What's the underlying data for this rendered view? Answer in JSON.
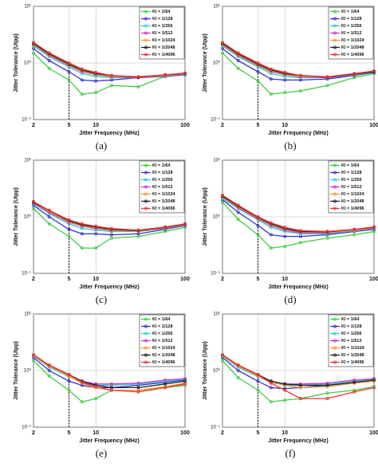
{
  "chart_data": [
    {
      "type": "line",
      "caption": "(a)",
      "xlabel": "Jitter Frequency (MHz)",
      "ylabel": "Jitter Tolerance (UIpp)",
      "log_x": true,
      "log_y": true,
      "grid": true,
      "legend": "upper right",
      "vline_x": 5,
      "x": [
        2,
        3,
        5,
        7,
        10,
        15,
        30,
        60,
        100
      ],
      "xlim": [
        2,
        100
      ],
      "xticks": [
        2,
        5,
        10,
        100
      ],
      "ylim": [
        0.1,
        10
      ],
      "yticks": [
        {
          "value": 0.1,
          "label": "10⁻¹"
        },
        {
          "value": 1,
          "label": "10⁰"
        },
        {
          "value": 10,
          "label": "10¹"
        }
      ],
      "series": [
        {
          "name": "KI = 1/64",
          "color": "#44cc44",
          "values": [
            1.5,
            0.8,
            0.5,
            0.28,
            0.3,
            0.4,
            0.38,
            0.58,
            0.62
          ]
        },
        {
          "name": "KI = 1/128",
          "color": "#3333cc",
          "values": [
            1.8,
            1.1,
            0.7,
            0.5,
            0.48,
            0.5,
            0.55,
            0.58,
            0.62
          ]
        },
        {
          "name": "KI = 1/256",
          "color": "#33cccc",
          "values": [
            2.0,
            1.3,
            0.85,
            0.65,
            0.58,
            0.55,
            0.55,
            0.6,
            0.63
          ]
        },
        {
          "name": "KI = 1/512",
          "color": "#cc33cc",
          "values": [
            2.1,
            1.35,
            0.9,
            0.7,
            0.62,
            0.57,
            0.55,
            0.6,
            0.64
          ]
        },
        {
          "name": "KI = 1/1024",
          "color": "#ee9933",
          "values": [
            2.1,
            1.4,
            0.92,
            0.72,
            0.63,
            0.58,
            0.56,
            0.6,
            0.65
          ]
        },
        {
          "name": "KI = 1/2048",
          "color": "#222222",
          "values": [
            2.2,
            1.45,
            0.95,
            0.75,
            0.65,
            0.6,
            0.56,
            0.62,
            0.65
          ]
        },
        {
          "name": "KI = 1/4096",
          "color": "#ee3333",
          "values": [
            2.3,
            1.5,
            1.0,
            0.78,
            0.68,
            0.6,
            0.57,
            0.62,
            0.66
          ]
        }
      ]
    },
    {
      "type": "line",
      "caption": "(b)",
      "xlabel": "Jitter Frequency (MHz)",
      "ylabel": "Jitter Tolerance (UIpp)",
      "log_x": true,
      "log_y": true,
      "grid": true,
      "legend": "upper right",
      "vline_x": 5,
      "x": [
        2,
        3,
        5,
        7,
        10,
        15,
        30,
        60,
        100
      ],
      "xlim": [
        2,
        100
      ],
      "xticks": [
        2,
        5,
        10,
        100
      ],
      "ylim": [
        0.1,
        10
      ],
      "yticks": [
        {
          "value": 0.1,
          "label": "10⁻¹"
        },
        {
          "value": 1,
          "label": "10⁰"
        },
        {
          "value": 10,
          "label": "10¹"
        }
      ],
      "series": [
        {
          "name": "KI = 1/64",
          "color": "#44cc44",
          "values": [
            1.5,
            0.8,
            0.48,
            0.28,
            0.3,
            0.32,
            0.4,
            0.55,
            0.65
          ]
        },
        {
          "name": "KI = 1/128",
          "color": "#3333cc",
          "values": [
            1.8,
            1.1,
            0.7,
            0.52,
            0.5,
            0.5,
            0.52,
            0.6,
            0.68
          ]
        },
        {
          "name": "KI = 1/256",
          "color": "#33cccc",
          "values": [
            2.0,
            1.3,
            0.85,
            0.65,
            0.58,
            0.55,
            0.55,
            0.62,
            0.7
          ]
        },
        {
          "name": "KI = 1/512",
          "color": "#cc33cc",
          "values": [
            2.1,
            1.35,
            0.9,
            0.7,
            0.62,
            0.57,
            0.55,
            0.63,
            0.7
          ]
        },
        {
          "name": "KI = 1/1024",
          "color": "#ee9933",
          "values": [
            2.1,
            1.4,
            0.92,
            0.72,
            0.63,
            0.58,
            0.56,
            0.63,
            0.7
          ]
        },
        {
          "name": "KI = 1/2048",
          "color": "#222222",
          "values": [
            2.2,
            1.45,
            0.95,
            0.75,
            0.65,
            0.6,
            0.56,
            0.64,
            0.7
          ]
        },
        {
          "name": "KI = 1/4096",
          "color": "#ee3333",
          "values": [
            2.3,
            1.5,
            1.0,
            0.78,
            0.68,
            0.6,
            0.57,
            0.65,
            0.72
          ]
        }
      ]
    },
    {
      "type": "line",
      "caption": "(c)",
      "xlabel": "Jitter Frequency (MHz)",
      "ylabel": "Jitter Tolerance (UIpp)",
      "log_x": true,
      "log_y": true,
      "grid": true,
      "legend": "upper right",
      "vline_x": 5,
      "x": [
        2,
        3,
        5,
        7,
        10,
        15,
        30,
        60,
        100
      ],
      "xlim": [
        2,
        100
      ],
      "xticks": [
        2,
        5,
        10,
        100
      ],
      "ylim": [
        0.1,
        10
      ],
      "yticks": [
        {
          "value": 0.1,
          "label": "10⁻¹"
        },
        {
          "value": 1,
          "label": "10⁰"
        },
        {
          "value": 10,
          "label": "10¹"
        }
      ],
      "series": [
        {
          "name": "KI = 1/64",
          "color": "#44cc44",
          "values": [
            1.4,
            0.75,
            0.45,
            0.28,
            0.28,
            0.42,
            0.45,
            0.55,
            0.65
          ]
        },
        {
          "name": "KI = 1/128",
          "color": "#3333cc",
          "values": [
            1.6,
            1.0,
            0.6,
            0.5,
            0.5,
            0.48,
            0.5,
            0.6,
            0.7
          ]
        },
        {
          "name": "KI = 1/256",
          "color": "#33cccc",
          "values": [
            1.7,
            1.15,
            0.75,
            0.62,
            0.58,
            0.55,
            0.55,
            0.62,
            0.72
          ]
        },
        {
          "name": "KI = 1/512",
          "color": "#cc33cc",
          "values": [
            1.75,
            1.2,
            0.8,
            0.68,
            0.62,
            0.57,
            0.56,
            0.63,
            0.72
          ]
        },
        {
          "name": "KI = 1/1024",
          "color": "#ee9933",
          "values": [
            1.8,
            1.25,
            0.82,
            0.7,
            0.64,
            0.58,
            0.56,
            0.64,
            0.73
          ]
        },
        {
          "name": "KI = 1/2048",
          "color": "#222222",
          "values": [
            1.8,
            1.3,
            0.85,
            0.72,
            0.66,
            0.6,
            0.57,
            0.65,
            0.74
          ]
        },
        {
          "name": "KI = 1/4096",
          "color": "#ee3333",
          "values": [
            1.85,
            1.3,
            0.88,
            0.75,
            0.68,
            0.62,
            0.58,
            0.66,
            0.75
          ]
        }
      ]
    },
    {
      "type": "line",
      "caption": "(d)",
      "xlabel": "Jitter Frequency (MHz)",
      "ylabel": "Jitter Tolerance (UIpp)",
      "log_x": true,
      "log_y": true,
      "grid": true,
      "legend": "upper right",
      "vline_x": 5,
      "x": [
        2,
        3,
        5,
        7,
        10,
        15,
        30,
        60,
        100
      ],
      "xlim": [
        2,
        100
      ],
      "xticks": [
        2,
        5,
        10,
        100
      ],
      "ylim": [
        0.1,
        10
      ],
      "yticks": [
        {
          "value": 0.1,
          "label": "10⁻¹"
        },
        {
          "value": 1,
          "label": "10⁰"
        },
        {
          "value": 10,
          "label": "10¹"
        }
      ],
      "series": [
        {
          "name": "KI = 1/64",
          "color": "#44cc44",
          "values": [
            1.8,
            0.9,
            0.48,
            0.28,
            0.3,
            0.35,
            0.42,
            0.48,
            0.55
          ]
        },
        {
          "name": "KI = 1/128",
          "color": "#3333cc",
          "values": [
            2.0,
            1.2,
            0.7,
            0.48,
            0.45,
            0.45,
            0.48,
            0.55,
            0.6
          ]
        },
        {
          "name": "KI = 1/256",
          "color": "#33cccc",
          "values": [
            2.1,
            1.4,
            0.88,
            0.65,
            0.55,
            0.5,
            0.5,
            0.57,
            0.62
          ]
        },
        {
          "name": "KI = 1/512",
          "color": "#cc33cc",
          "values": [
            2.2,
            1.45,
            0.92,
            0.7,
            0.58,
            0.52,
            0.52,
            0.58,
            0.63
          ]
        },
        {
          "name": "KI = 1/1024",
          "color": "#ee9933",
          "values": [
            2.2,
            1.5,
            0.95,
            0.72,
            0.6,
            0.54,
            0.53,
            0.58,
            0.64
          ]
        },
        {
          "name": "KI = 1/2048",
          "color": "#222222",
          "values": [
            2.3,
            1.55,
            0.98,
            0.75,
            0.62,
            0.55,
            0.54,
            0.6,
            0.65
          ]
        },
        {
          "name": "KI = 1/4096",
          "color": "#ee3333",
          "values": [
            2.4,
            1.6,
            1.0,
            0.78,
            0.65,
            0.57,
            0.55,
            0.6,
            0.66
          ]
        }
      ]
    },
    {
      "type": "line",
      "caption": "(e)",
      "xlabel": "Jitter Frequency (MHz)",
      "ylabel": "Jitter Tolerance (UIpp)",
      "log_x": true,
      "log_y": true,
      "grid": true,
      "legend": "upper right",
      "vline_x": 5,
      "x": [
        2,
        3,
        5,
        7,
        10,
        15,
        30,
        60,
        100
      ],
      "xlim": [
        2,
        100
      ],
      "xticks": [
        2,
        5,
        10,
        100
      ],
      "ylim": [
        0.1,
        10
      ],
      "yticks": [
        {
          "value": 0.1,
          "label": "10⁻¹"
        },
        {
          "value": 1,
          "label": "10⁰"
        },
        {
          "value": 10,
          "label": "10¹"
        }
      ],
      "series": [
        {
          "name": "KI = 1/64",
          "color": "#44cc44",
          "values": [
            1.5,
            0.8,
            0.45,
            0.28,
            0.32,
            0.45,
            0.45,
            0.5,
            0.55
          ]
        },
        {
          "name": "KI = 1/128",
          "color": "#3333cc",
          "values": [
            1.7,
            1.0,
            0.65,
            0.55,
            0.5,
            0.5,
            0.55,
            0.62,
            0.68
          ]
        },
        {
          "name": "KI = 1/256",
          "color": "#33cccc",
          "values": [
            1.8,
            1.15,
            0.78,
            0.62,
            0.55,
            0.55,
            0.58,
            0.65,
            0.7
          ]
        },
        {
          "name": "KI = 1/512",
          "color": "#cc33cc",
          "values": [
            1.85,
            1.2,
            0.82,
            0.65,
            0.58,
            0.58,
            0.6,
            0.68,
            0.72
          ]
        },
        {
          "name": "KI = 1/1024",
          "color": "#ee9933",
          "values": [
            1.85,
            1.2,
            0.8,
            0.6,
            0.5,
            0.45,
            0.45,
            0.52,
            0.6
          ]
        },
        {
          "name": "KI = 1/2048",
          "color": "#222222",
          "values": [
            1.9,
            1.25,
            0.85,
            0.65,
            0.55,
            0.5,
            0.5,
            0.58,
            0.65
          ]
        },
        {
          "name": "KI = 1/4096",
          "color": "#ee3333",
          "values": [
            1.9,
            1.25,
            0.85,
            0.62,
            0.52,
            0.45,
            0.42,
            0.5,
            0.58
          ]
        }
      ]
    },
    {
      "type": "line",
      "caption": "(f)",
      "xlabel": "Jitter Frequency (MHz)",
      "ylabel": "Jitter Tolerance (UIpp)",
      "log_x": true,
      "log_y": true,
      "grid": true,
      "legend": "upper right",
      "vline_x": 5,
      "x": [
        2,
        3,
        5,
        7,
        10,
        15,
        30,
        60,
        100
      ],
      "xlim": [
        2,
        100
      ],
      "xticks": [
        2,
        5,
        10,
        100
      ],
      "ylim": [
        0.1,
        10
      ],
      "yticks": [
        {
          "value": 0.1,
          "label": "10⁻¹"
        },
        {
          "value": 1,
          "label": "10⁰"
        },
        {
          "value": 10,
          "label": "10¹"
        }
      ],
      "series": [
        {
          "name": "KI = 1/64",
          "color": "#44cc44",
          "values": [
            1.5,
            0.75,
            0.45,
            0.28,
            0.3,
            0.32,
            0.4,
            0.45,
            0.52
          ]
        },
        {
          "name": "KI = 1/128",
          "color": "#3333cc",
          "values": [
            1.7,
            1.0,
            0.65,
            0.5,
            0.48,
            0.5,
            0.55,
            0.62,
            0.68
          ]
        },
        {
          "name": "KI = 1/256",
          "color": "#33cccc",
          "values": [
            1.8,
            1.15,
            0.78,
            0.62,
            0.55,
            0.55,
            0.58,
            0.65,
            0.7
          ]
        },
        {
          "name": "KI = 1/512",
          "color": "#cc33cc",
          "values": [
            1.85,
            1.2,
            0.82,
            0.65,
            0.58,
            0.58,
            0.6,
            0.68,
            0.72
          ]
        },
        {
          "name": "KI = 1/1024",
          "color": "#ee9933",
          "values": [
            1.85,
            1.2,
            0.8,
            0.62,
            0.55,
            0.5,
            0.52,
            0.6,
            0.65
          ]
        },
        {
          "name": "KI = 1/2048",
          "color": "#222222",
          "values": [
            1.9,
            1.25,
            0.85,
            0.65,
            0.58,
            0.55,
            0.55,
            0.62,
            0.68
          ]
        },
        {
          "name": "KI = 1/4096",
          "color": "#ee3333",
          "values": [
            1.9,
            1.25,
            0.85,
            0.6,
            0.45,
            0.32,
            0.32,
            0.42,
            0.5
          ]
        }
      ]
    }
  ]
}
